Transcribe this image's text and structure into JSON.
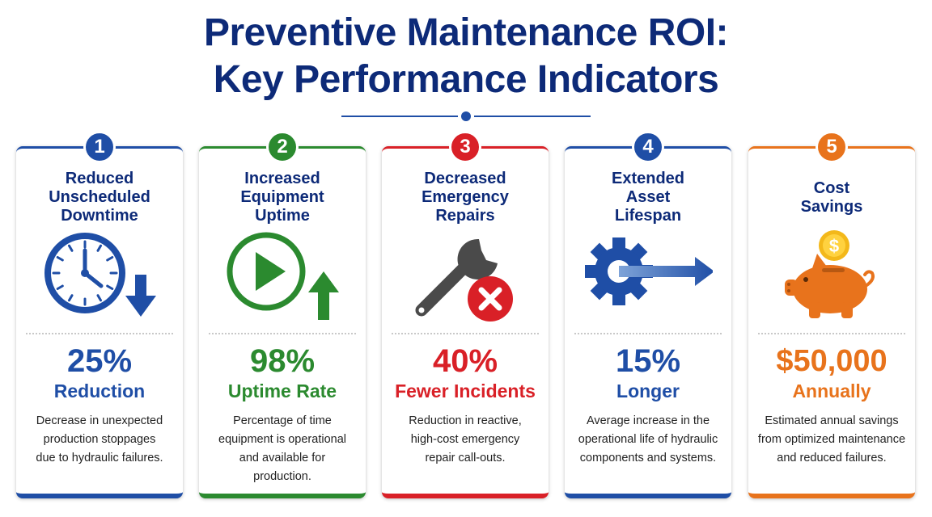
{
  "title_line1": "Preventive Maintenance ROI:",
  "title_line2": "Key Performance Indicators",
  "cards": [
    {
      "number": "1",
      "heading": [
        "Reduced",
        "Unscheduled",
        "Downtime"
      ],
      "metric": "25%",
      "sub": "Reduction",
      "desc": [
        "Decrease in unexpected",
        "production stoppages",
        "due to hydraulic failures."
      ],
      "color": "#1f4ea6",
      "icon": "clock-with-down-arrow-icon"
    },
    {
      "number": "2",
      "heading": [
        "Increased",
        "Equipment",
        "Uptime"
      ],
      "metric": "98%",
      "sub": "Uptime Rate",
      "desc": [
        "Percentage of time",
        "equipment is operational",
        "and available for",
        "production."
      ],
      "color": "#2b8a2f",
      "icon": "play-with-up-arrow-icon"
    },
    {
      "number": "3",
      "heading": [
        "Decreased",
        "Emergency",
        "Repairs"
      ],
      "metric": "40%",
      "sub": "Fewer Incidents",
      "desc": [
        "Reduction in reactive,",
        "high-cost emergency",
        "repair call-outs."
      ],
      "color": "#d92027",
      "icon": "wrench-with-x-icon"
    },
    {
      "number": "4",
      "heading": [
        "Extended",
        "Asset",
        "Lifespan"
      ],
      "metric": "15%",
      "sub": "Longer",
      "desc": [
        "Average increase in the",
        "operational life of hydraulic",
        "components and systems."
      ],
      "color": "#1f4ea6",
      "icon": "gear-with-right-arrow-icon"
    },
    {
      "number": "5",
      "heading": [
        "Cost",
        "Savings"
      ],
      "metric": "$50,000",
      "sub": "Annually",
      "desc": [
        "Estimated annual savings",
        "from optimized maintenance",
        "and reduced failures."
      ],
      "color": "#e8731c",
      "icon": "piggy-bank-with-coin-icon"
    }
  ]
}
